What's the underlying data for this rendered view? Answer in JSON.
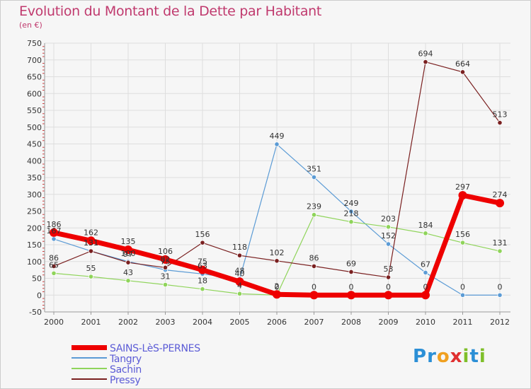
{
  "title": "Evolution du Montant de la Dette par Habitant",
  "subtitle": "(en €)",
  "logo": {
    "text": "Proxiti",
    "letters": [
      "P",
      "r",
      "o",
      "x",
      "i",
      "t",
      "i"
    ],
    "colors": [
      "#2b8fd6",
      "#2b8fd6",
      "#f0a020",
      "#e03030",
      "#7fbf2a",
      "#2b8fd6",
      "#7fbf2a"
    ]
  },
  "chart_data": {
    "type": "line",
    "title": "Evolution du Montant de la Dette par Habitant",
    "subtitle": "(en €)",
    "x": [
      "2000",
      "2001",
      "2002",
      "2003",
      "2004",
      "2005",
      "2006",
      "2007",
      "2008",
      "2009",
      "2010",
      "2011",
      "2012"
    ],
    "ylim": [
      -50,
      750
    ],
    "yticks": [
      -50,
      0,
      50,
      100,
      150,
      200,
      250,
      300,
      350,
      400,
      450,
      500,
      550,
      600,
      650,
      700,
      750
    ],
    "ytick_labels": [
      "-50",
      "0",
      "50",
      "100",
      "150",
      "200",
      "250",
      "300",
      "350",
      "400",
      "450",
      "500",
      "550",
      "600",
      "650",
      "700",
      "750"
    ],
    "grid": true,
    "legend": "bottom-left",
    "series": [
      {
        "name": "SAINS-LèS-PERNES",
        "color": "#ee0000",
        "primary": true,
        "values": [
          186,
          162,
          135,
          106,
          75,
          40,
          2,
          0,
          0,
          0,
          0,
          297,
          274
        ],
        "labels": [
          "186",
          "162",
          "135",
          "106",
          "75",
          "40",
          "2",
          "0",
          "0",
          "0",
          "0",
          "297",
          "274"
        ]
      },
      {
        "name": "Tangry",
        "color": "#5b9bd5",
        "values": [
          167,
          131,
          100,
          75,
          63,
          48,
          449,
          351,
          249,
          152,
          67,
          0,
          0
        ],
        "labels": [
          "167",
          "131",
          "100",
          "75",
          "63",
          "48",
          "449",
          "351",
          "249",
          "152",
          "67",
          "0",
          "0"
        ]
      },
      {
        "name": "Sachin",
        "color": "#8fd45a",
        "values": [
          65,
          55,
          43,
          31,
          18,
          4,
          0,
          239,
          218,
          203,
          184,
          156,
          131
        ],
        "labels": [
          "65",
          "55",
          "43",
          "31",
          "18",
          "4",
          "0",
          "239",
          "218",
          "203",
          "184",
          "156",
          "131"
        ]
      },
      {
        "name": "Pressy",
        "color": "#7a2020",
        "values": [
          86,
          131,
          97,
          82,
          156,
          118,
          102,
          86,
          69,
          53,
          694,
          664,
          513
        ],
        "labels": [
          "86",
          "131",
          "97",
          "82",
          "156",
          "118",
          "102",
          "86",
          "69",
          "53",
          "694",
          "664",
          "513"
        ]
      }
    ]
  }
}
